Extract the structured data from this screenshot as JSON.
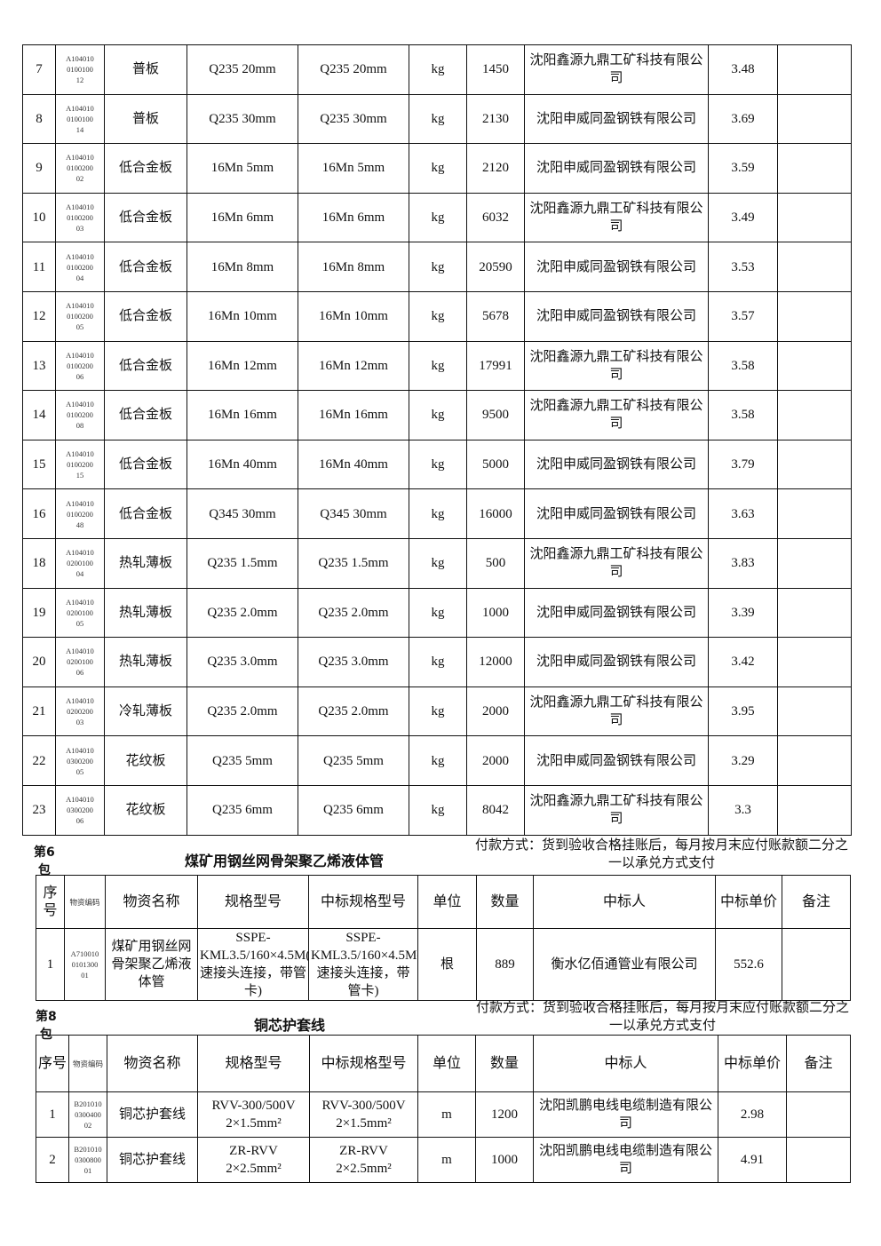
{
  "table1": {
    "rows": [
      [
        "7",
        "A104010\n0100100\n12",
        "普板",
        "Q235 20mm",
        "Q235 20mm",
        "kg",
        "1450",
        "沈阳鑫源九鼎工矿科技有限公司",
        "3.48",
        ""
      ],
      [
        "8",
        "A104010\n0100100\n14",
        "普板",
        "Q235 30mm",
        "Q235 30mm",
        "kg",
        "2130",
        "沈阳申威同盈钢铁有限公司",
        "3.69",
        ""
      ],
      [
        "9",
        "A104010\n0100200\n02",
        "低合金板",
        "16Mn 5mm",
        "16Mn 5mm",
        "kg",
        "2120",
        "沈阳申威同盈钢铁有限公司",
        "3.59",
        ""
      ],
      [
        "10",
        "A104010\n0100200\n03",
        "低合金板",
        "16Mn 6mm",
        "16Mn 6mm",
        "kg",
        "6032",
        "沈阳鑫源九鼎工矿科技有限公司",
        "3.49",
        ""
      ],
      [
        "11",
        "A104010\n0100200\n04",
        "低合金板",
        "16Mn 8mm",
        "16Mn 8mm",
        "kg",
        "20590",
        "沈阳申威同盈钢铁有限公司",
        "3.53",
        ""
      ],
      [
        "12",
        "A104010\n0100200\n05",
        "低合金板",
        "16Mn 10mm",
        "16Mn 10mm",
        "kg",
        "5678",
        "沈阳申威同盈钢铁有限公司",
        "3.57",
        ""
      ],
      [
        "13",
        "A104010\n0100200\n06",
        "低合金板",
        "16Mn 12mm",
        "16Mn 12mm",
        "kg",
        "17991",
        "沈阳鑫源九鼎工矿科技有限公司",
        "3.58",
        ""
      ],
      [
        "14",
        "A104010\n0100200\n08",
        "低合金板",
        "16Mn 16mm",
        "16Mn 16mm",
        "kg",
        "9500",
        "沈阳鑫源九鼎工矿科技有限公司",
        "3.58",
        ""
      ],
      [
        "15",
        "A104010\n0100200\n15",
        "低合金板",
        "16Mn 40mm",
        "16Mn 40mm",
        "kg",
        "5000",
        "沈阳申威同盈钢铁有限公司",
        "3.79",
        ""
      ],
      [
        "16",
        "A104010\n0100200\n48",
        "低合金板",
        "Q345 30mm",
        "Q345 30mm",
        "kg",
        "16000",
        "沈阳申威同盈钢铁有限公司",
        "3.63",
        ""
      ],
      [
        "18",
        "A104010\n0200100\n04",
        "热轧薄板",
        "Q235 1.5mm",
        "Q235 1.5mm",
        "kg",
        "500",
        "沈阳鑫源九鼎工矿科技有限公司",
        "3.83",
        ""
      ],
      [
        "19",
        "A104010\n0200100\n05",
        "热轧薄板",
        "Q235 2.0mm",
        "Q235 2.0mm",
        "kg",
        "1000",
        "沈阳申威同盈钢铁有限公司",
        "3.39",
        ""
      ],
      [
        "20",
        "A104010\n0200100\n06",
        "热轧薄板",
        "Q235 3.0mm",
        "Q235 3.0mm",
        "kg",
        "12000",
        "沈阳申威同盈钢铁有限公司",
        "3.42",
        ""
      ],
      [
        "21",
        "A104010\n0200200\n03",
        "冷轧薄板",
        "Q235 2.0mm",
        "Q235 2.0mm",
        "kg",
        "2000",
        "沈阳鑫源九鼎工矿科技有限公司",
        "3.95",
        ""
      ],
      [
        "22",
        "A104010\n0300200\n05",
        "花纹板",
        "Q235 5mm",
        "Q235 5mm",
        "kg",
        "2000",
        "沈阳申威同盈钢铁有限公司",
        "3.29",
        ""
      ],
      [
        "23",
        "A104010\n0300200\n06",
        "花纹板",
        "Q235 6mm",
        "Q235 6mm",
        "kg",
        "8042",
        "沈阳鑫源九鼎工矿科技有限公司",
        "3.3",
        ""
      ]
    ]
  },
  "package6": {
    "label": "第6\n包",
    "title": "煤矿用钢丝网骨架聚乙烯液体管",
    "payment": "付款方式：货到验收合格挂账后，每月按月末应付账款额二分之一以承兑方式支付",
    "headers": [
      "序号",
      "物资编码",
      "物资名称",
      "规格型号",
      "中标规格型号",
      "单位",
      "数量",
      "中标人",
      "中标单价",
      "备注"
    ],
    "rows": [
      [
        "1",
        "A710010\n0101300\n01",
        "煤矿用钢丝网骨架聚乙烯液体管",
        "SSPE-KML3.5/160×4.5M(快速接头连接，带管卡)",
        "SSPE-KML3.5/160×4.5M(快速接头连接，带管卡)",
        "根",
        "889",
        "衡水亿佰通管业有限公司",
        "552.6",
        ""
      ]
    ]
  },
  "package8": {
    "label": "第8\n包",
    "title": "铜芯护套线",
    "payment": "付款方式：货到验收合格挂账后，每月按月末应付账款额二分之一以承兑方式支付",
    "headers": [
      "序号",
      "物资编码",
      "物资名称",
      "规格型号",
      "中标规格型号",
      "单位",
      "数量",
      "中标人",
      "中标单价",
      "备注"
    ],
    "rows": [
      [
        "1",
        "B201010\n0300400\n02",
        "铜芯护套线",
        "RVV-300/500V\n2×1.5mm²",
        "RVV-300/500V\n2×1.5mm²",
        "m",
        "1200",
        "沈阳凯鹏电线电缆制造有限公司",
        "2.98",
        ""
      ],
      [
        "2",
        "B201010\n0300800\n01",
        "铜芯护套线",
        "ZR-RVV\n2×2.5mm²",
        "ZR-RVV\n2×2.5mm²",
        "m",
        "1000",
        "沈阳凯鹏电线电缆制造有限公司",
        "4.91",
        ""
      ]
    ]
  }
}
